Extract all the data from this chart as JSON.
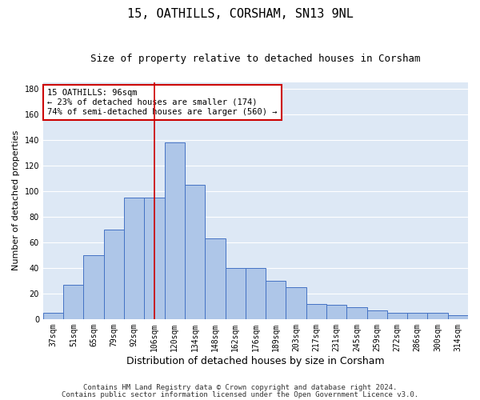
{
  "title1": "15, OATHILLS, CORSHAM, SN13 9NL",
  "title2": "Size of property relative to detached houses in Corsham",
  "xlabel": "Distribution of detached houses by size in Corsham",
  "ylabel": "Number of detached properties",
  "categories": [
    "37sqm",
    "51sqm",
    "65sqm",
    "79sqm",
    "92sqm",
    "106sqm",
    "120sqm",
    "134sqm",
    "148sqm",
    "162sqm",
    "176sqm",
    "189sqm",
    "203sqm",
    "217sqm",
    "231sqm",
    "245sqm",
    "259sqm",
    "272sqm",
    "286sqm",
    "300sqm",
    "314sqm"
  ],
  "values": [
    5,
    27,
    50,
    70,
    95,
    95,
    138,
    105,
    63,
    40,
    40,
    30,
    25,
    12,
    11,
    9,
    7,
    5,
    5,
    5,
    3
  ],
  "bar_color": "#aec6e8",
  "bar_edge_color": "#4472c4",
  "highlight_bar_index": 5,
  "highlight_line_color": "#cc0000",
  "ylim": [
    0,
    185
  ],
  "yticks": [
    0,
    20,
    40,
    60,
    80,
    100,
    120,
    140,
    160,
    180
  ],
  "annotation_text": "15 OATHILLS: 96sqm\n← 23% of detached houses are smaller (174)\n74% of semi-detached houses are larger (560) →",
  "annotation_box_color": "#ffffff",
  "annotation_box_edge_color": "#cc0000",
  "footer1": "Contains HM Land Registry data © Crown copyright and database right 2024.",
  "footer2": "Contains public sector information licensed under the Open Government Licence v3.0.",
  "bg_color": "#ffffff",
  "plot_bg_color": "#dde8f5",
  "grid_color": "#ffffff",
  "title1_fontsize": 11,
  "title2_fontsize": 9,
  "xlabel_fontsize": 9,
  "ylabel_fontsize": 8,
  "tick_fontsize": 7,
  "footer_fontsize": 6.5,
  "annotation_fontsize": 7.5
}
